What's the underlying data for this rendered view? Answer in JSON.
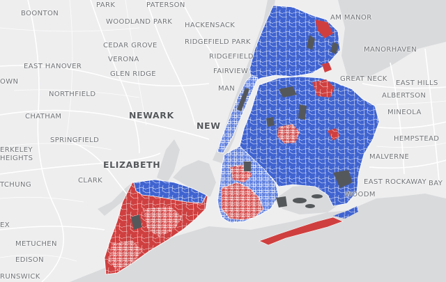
{
  "map": {
    "place_labels": [
      {
        "id": "boonton",
        "text": "BOONTON"
      },
      {
        "id": "paterson",
        "text": "PATERSON"
      },
      {
        "id": "park",
        "text": "PARK"
      },
      {
        "id": "woodland-park",
        "text": "WOODLAND PARK"
      },
      {
        "id": "hackensack",
        "text": "HACKENSACK"
      },
      {
        "id": "am-manor",
        "text": "AM MANOR"
      },
      {
        "id": "cedar-grove",
        "text": "CEDAR GROVE"
      },
      {
        "id": "ridgefield-park",
        "text": "RIDGEFIELD PARK"
      },
      {
        "id": "manorhaven",
        "text": "MANORHAVEN"
      },
      {
        "id": "east-hanover",
        "text": "EAST HANOVER"
      },
      {
        "id": "verona",
        "text": "VERONA"
      },
      {
        "id": "ridgefield",
        "text": "RIDGEFIELD"
      },
      {
        "id": "glen-ridge",
        "text": "GLEN RIDGE"
      },
      {
        "id": "fairview",
        "text": "FAIRVIEW"
      },
      {
        "id": "great-neck",
        "text": "GREAT NECK"
      },
      {
        "id": "own",
        "text": "OWN"
      },
      {
        "id": "east-hills",
        "text": "EAST HILLS"
      },
      {
        "id": "northfield",
        "text": "NORTHFIELD"
      },
      {
        "id": "man",
        "text": "MAN"
      },
      {
        "id": "albertson",
        "text": "ALBERTSON"
      },
      {
        "id": "mineola",
        "text": "MINEOLA"
      },
      {
        "id": "chatham",
        "text": "CHATHAM"
      },
      {
        "id": "newark",
        "text": "NEWARK"
      },
      {
        "id": "new",
        "text": "NEW"
      },
      {
        "id": "hempstead",
        "text": "HEMPSTEAD"
      },
      {
        "id": "erkeley",
        "text": "ERKELEY"
      },
      {
        "id": "springfield",
        "text": "SPRINGFIELD"
      },
      {
        "id": "heights",
        "text": "HEIGHTS"
      },
      {
        "id": "malverne",
        "text": "MALVERNE"
      },
      {
        "id": "elizabeth",
        "text": "ELIZABETH"
      },
      {
        "id": "clark",
        "text": "CLARK"
      },
      {
        "id": "east-rockaway",
        "text": "EAST ROCKAWAY"
      },
      {
        "id": "tchung",
        "text": "TCHUNG"
      },
      {
        "id": "bay",
        "text": "BAY"
      },
      {
        "id": "woodm",
        "text": "WOODM"
      },
      {
        "id": "ex",
        "text": "EX"
      },
      {
        "id": "metuchen",
        "text": "METUCHEN"
      },
      {
        "id": "edison",
        "text": "EDISON"
      },
      {
        "id": "runswick",
        "text": "RUNSWICK"
      }
    ],
    "colors": {
      "land": "#eeeeef",
      "water": "#d9dadc",
      "roads": "#ffffff",
      "blue_district": "#3f63d0",
      "red_district": "#cf3f3f",
      "dark_park": "#55585b",
      "district_border": "#ffffff"
    }
  }
}
